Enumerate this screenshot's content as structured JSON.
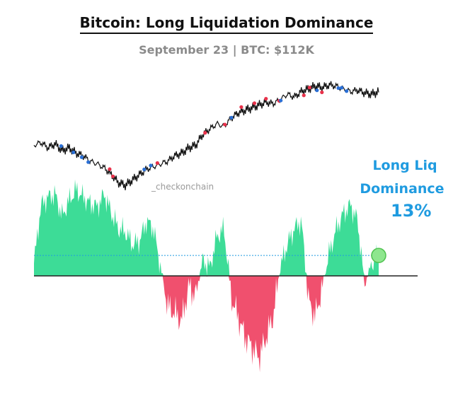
{
  "header": {
    "title": "Bitcoin: Long Liquidation Dominance",
    "subtitle": "September 23 | BTC: $112K"
  },
  "watermark": "_checkonchain",
  "annotation": {
    "line1": "Long Liq",
    "line2": "Dominance",
    "value": "13%"
  },
  "colors": {
    "price": "#111111",
    "positive": "#3ddc97",
    "negative": "#f0506e",
    "reference_line": "#1f9be0",
    "annotation": "#1f9be0",
    "highlight": "#8ee68e",
    "long_liq_marker": "#e8314a",
    "short_liq_marker": "#2a6fd6"
  },
  "chart_data": {
    "type": "line",
    "series": [
      {
        "role": "price",
        "values": [
          52,
          54,
          50,
          53,
          48,
          50,
          46,
          44,
          40,
          38,
          35,
          30,
          24,
          22,
          26,
          30,
          34,
          36,
          38,
          40,
          44,
          46,
          50,
          52,
          60,
          64,
          68,
          66,
          72,
          76,
          78,
          80,
          82,
          84,
          83,
          86,
          90,
          88,
          92,
          94,
          96,
          95,
          97,
          96,
          94,
          92,
          93,
          91,
          90,
          92
        ]
      },
      {
        "role": "dominance",
        "values": [
          8,
          45,
          50,
          52,
          38,
          48,
          55,
          50,
          46,
          44,
          52,
          40,
          30,
          28,
          20,
          22,
          35,
          30,
          5,
          -15,
          -18,
          -22,
          -5,
          -10,
          10,
          5,
          25,
          30,
          -10,
          -20,
          -30,
          -35,
          -40,
          -30,
          -20,
          5,
          20,
          30,
          35,
          -12,
          -20,
          -5,
          15,
          30,
          40,
          45,
          35,
          -5,
          8,
          13
        ]
      }
    ],
    "reference_line": 13,
    "zero_line": 0,
    "y_range_dominance": [
      -45,
      55
    ],
    "current_value_percent": 13,
    "grid": false,
    "legend": "none"
  }
}
